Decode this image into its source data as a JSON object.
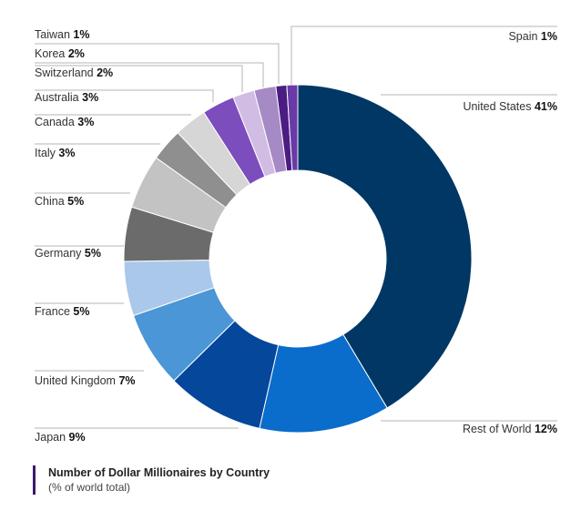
{
  "chart_data": {
    "type": "pie",
    "style": "donut",
    "title": "Number of Dollar Millionaires by Country",
    "subtitle": "(% of world total)",
    "unit": "%",
    "slices": [
      {
        "label": "United States",
        "value": 41,
        "color": "#003764"
      },
      {
        "label": "Rest of World",
        "value": 12,
        "color": "#0a6ccb"
      },
      {
        "label": "Japan",
        "value": 9,
        "color": "#04479b"
      },
      {
        "label": "United Kingdom",
        "value": 7,
        "color": "#4a96d6"
      },
      {
        "label": "France",
        "value": 5,
        "color": "#a9c8ea"
      },
      {
        "label": "Germany",
        "value": 5,
        "color": "#6b6b6b"
      },
      {
        "label": "China",
        "value": 5,
        "color": "#c3c3c3"
      },
      {
        "label": "Italy",
        "value": 3,
        "color": "#8f8f8f"
      },
      {
        "label": "Canada",
        "value": 3,
        "color": "#d6d6d6"
      },
      {
        "label": "Australia",
        "value": 3,
        "color": "#7c4dbd"
      },
      {
        "label": "Switzerland",
        "value": 2,
        "color": "#d1bde3"
      },
      {
        "label": "Korea",
        "value": 2,
        "color": "#a68ac6"
      },
      {
        "label": "Taiwan",
        "value": 1,
        "color": "#4b1c82"
      },
      {
        "label": "Spain",
        "value": 1,
        "color": "#6a3aa8"
      }
    ]
  },
  "labels": [
    {
      "name": "United States",
      "pct": "41%"
    },
    {
      "name": "Rest of World",
      "pct": "12%"
    },
    {
      "name": "Japan",
      "pct": "9%"
    },
    {
      "name": "United Kingdom",
      "pct": "7%"
    },
    {
      "name": "France",
      "pct": "5%"
    },
    {
      "name": "Germany",
      "pct": "5%"
    },
    {
      "name": "China",
      "pct": "5%"
    },
    {
      "name": "Italy",
      "pct": "3%"
    },
    {
      "name": "Canada",
      "pct": "3%"
    },
    {
      "name": "Australia",
      "pct": "3%"
    },
    {
      "name": "Switzerland",
      "pct": "2%"
    },
    {
      "name": "Korea",
      "pct": "2%"
    },
    {
      "name": "Taiwan",
      "pct": "1%"
    },
    {
      "name": "Spain",
      "pct": "1%"
    }
  ]
}
